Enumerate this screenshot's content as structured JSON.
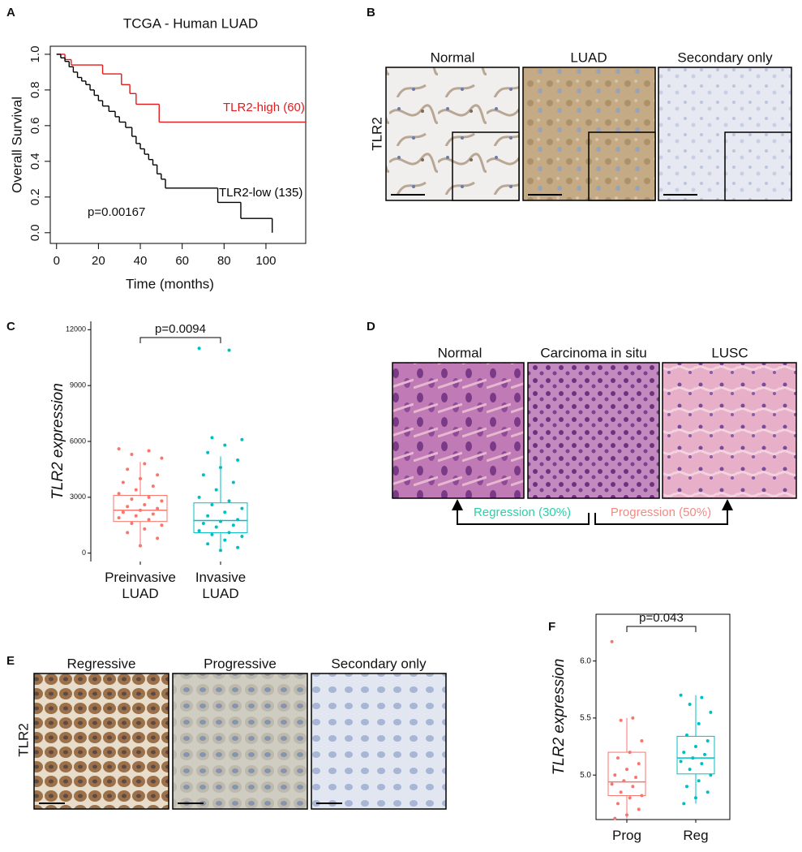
{
  "chart_data": [
    {
      "type": "line",
      "panel": "A",
      "title": "TCGA - Human LUAD",
      "x_label": "Time (months)",
      "y_label": "Overall Survival",
      "annotation": "p=0.00167",
      "xlim": [
        -3,
        119
      ],
      "xticks": [
        0,
        20,
        40,
        60,
        80,
        100
      ],
      "ylim": [
        -0.06,
        1.045
      ],
      "yticks": [
        {
          "value": 0,
          "label": "0.0"
        },
        0.2,
        0.4,
        0.6,
        0.8,
        {
          "value": 1,
          "label": "1.0"
        }
      ],
      "series": [
        {
          "name": "TLR2-high (60)",
          "color": "#e31a1c",
          "x": [
            0,
            4,
            7,
            22,
            31,
            35,
            38,
            49,
            119
          ],
          "values": [
            1.0,
            0.97,
            0.94,
            0.89,
            0.83,
            0.78,
            0.72,
            0.62,
            0.62
          ]
        },
        {
          "name": "TLR2-low (135)",
          "color": "#000000",
          "x": [
            0,
            2,
            4,
            6,
            8,
            10,
            12,
            14,
            16,
            18,
            20,
            22,
            25,
            28,
            30,
            33,
            36,
            38,
            40,
            42,
            44,
            46,
            48,
            50,
            52,
            77,
            88,
            103
          ],
          "values": [
            1.0,
            0.98,
            0.96,
            0.93,
            0.9,
            0.87,
            0.85,
            0.83,
            0.8,
            0.77,
            0.74,
            0.71,
            0.68,
            0.65,
            0.62,
            0.59,
            0.54,
            0.5,
            0.47,
            0.44,
            0.41,
            0.38,
            0.33,
            0.3,
            0.25,
            0.17,
            0.08,
            0.0
          ]
        }
      ]
    },
    {
      "type": "box",
      "panel": "C",
      "y_label": "TLR2 expression",
      "annotation": "p=0.0094",
      "categories": [
        "Preinvasive LUAD",
        "Invasive LUAD"
      ],
      "colors": [
        "#f8766d",
        "#00bfc4"
      ],
      "ylim": [
        -450,
        12450
      ],
      "yticks": [
        0,
        3000,
        6000,
        9000,
        12000
      ],
      "boxes": [
        {
          "whislo": 300,
          "q1": 1700,
          "median": 2300,
          "q3": 3100,
          "whishi": 4900
        },
        {
          "whislo": 150,
          "q1": 1100,
          "median": 1750,
          "q3": 2700,
          "whishi": 5200
        }
      ],
      "points": [
        [
          5600,
          5500,
          5300,
          5100,
          4800,
          4500,
          4200,
          4000,
          3800,
          3600,
          3400,
          3200,
          3000,
          2900,
          2800,
          2600,
          2500,
          2400,
          2300,
          2200,
          2100,
          2000,
          1900,
          1800,
          1600,
          1500,
          1300,
          1100,
          800,
          400
        ],
        [
          11000,
          10900,
          6200,
          6100,
          5800,
          5400,
          5000,
          4600,
          4200,
          3800,
          3400,
          3000,
          2800,
          2600,
          2400,
          2200,
          2000,
          1800,
          1700,
          1600,
          1500,
          1400,
          1200,
          1100,
          1000,
          900,
          700,
          500,
          300,
          150
        ]
      ]
    },
    {
      "type": "box",
      "panel": "F",
      "y_label": "TLR2 expression",
      "annotation": "p=0.043",
      "categories": [
        "Prog",
        "Reg"
      ],
      "colors": [
        "#f8766d",
        "#00bfc4"
      ],
      "ylim": [
        4.61,
        6.41
      ],
      "yticks": [
        {
          "value": 5,
          "label": "5.0"
        },
        5.5,
        {
          "value": 6,
          "label": "6.0"
        }
      ],
      "boxes": [
        {
          "whislo": 4.62,
          "q1": 4.82,
          "median": 4.94,
          "q3": 5.2,
          "whishi": 5.5
        },
        {
          "whislo": 4.75,
          "q1": 5.01,
          "median": 5.15,
          "q3": 5.34,
          "whishi": 5.7
        }
      ],
      "points": [
        [
          6.17,
          5.5,
          5.48,
          5.3,
          5.2,
          5.15,
          5.1,
          5.05,
          5.0,
          4.98,
          4.95,
          4.92,
          4.9,
          4.85,
          4.82,
          4.8,
          4.75,
          4.7,
          4.65,
          4.62
        ],
        [
          5.7,
          5.68,
          5.62,
          5.55,
          5.45,
          5.35,
          5.3,
          5.25,
          5.2,
          5.18,
          5.15,
          5.12,
          5.1,
          5.05,
          5.0,
          4.95,
          4.9,
          4.85,
          4.8,
          4.75
        ]
      ]
    }
  ],
  "image_panels": [
    {
      "panel": "B",
      "row_label": "TLR2",
      "titles": [
        "Normal",
        "LUAD",
        "Secondary only"
      ]
    },
    {
      "panel": "D",
      "titles": [
        "Normal",
        "Carcinoma in situ",
        "LUSC"
      ],
      "arrows": [
        "Regression (30%)",
        "Progression (50%)"
      ]
    },
    {
      "panel": "E",
      "row_label": "TLR2",
      "titles": [
        "Regressive",
        "Progressive",
        "Secondary only"
      ]
    }
  ]
}
